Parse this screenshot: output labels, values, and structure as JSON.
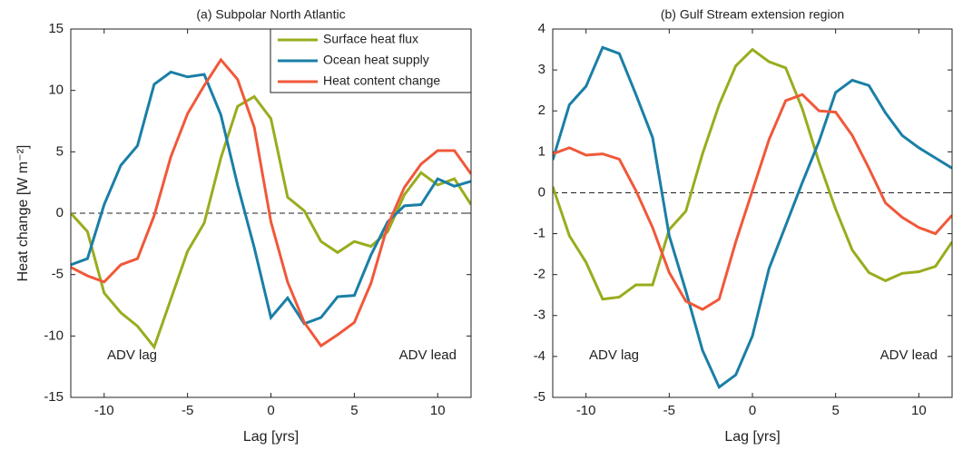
{
  "chart_data": [
    {
      "type": "line",
      "title": "(a) Subpolar North Atlantic",
      "xlabel": "Lag [yrs]",
      "ylabel": "Heat change [W m⁻²]",
      "x": [
        -12,
        -11,
        -10,
        -9,
        -8,
        -7,
        -6,
        -5,
        -4,
        -3,
        -2,
        -1,
        0,
        1,
        2,
        3,
        4,
        5,
        6,
        7,
        8,
        9,
        10,
        11,
        12
      ],
      "series": [
        {
          "name": "Surface heat flux",
          "color": "#9aac1e",
          "values": [
            0,
            -1.5,
            -6.5,
            -8.1,
            -9.2,
            -10.9,
            -7,
            -3.1,
            -0.8,
            4.5,
            8.7,
            9.5,
            7.7,
            1.3,
            0.2,
            -2.3,
            -3.2,
            -2.3,
            -2.7,
            -1.5,
            1.5,
            3.3,
            2.3,
            2.8,
            0.7
          ]
        },
        {
          "name": "Ocean heat supply",
          "color": "#1a7fa6",
          "values": [
            -4.2,
            -3.7,
            0.7,
            3.9,
            5.5,
            10.5,
            11.5,
            11.1,
            11.3,
            8,
            2.3,
            -2.8,
            -8.5,
            -6.9,
            -9,
            -8.5,
            -6.8,
            -6.7,
            -3.4,
            -0.7,
            0.6,
            0.7,
            2.8,
            2.2,
            2.6
          ]
        },
        {
          "name": "Heat content change",
          "color": "#f0583a",
          "values": [
            -4.4,
            -5.1,
            -5.6,
            -4.2,
            -3.7,
            -0.2,
            4.6,
            8.1,
            10.4,
            12.5,
            10.9,
            7,
            -0.7,
            -5.6,
            -8.9,
            -10.8,
            -9.9,
            -8.9,
            -5.7,
            -1,
            2.1,
            4,
            5.1,
            5.1,
            3.2
          ]
        }
      ],
      "xlim": [
        -12,
        12
      ],
      "xticks": [
        -10,
        -5,
        0,
        5,
        10
      ],
      "ylim": [
        -15,
        15
      ],
      "yticks": [
        -15,
        -10,
        -5,
        0,
        5,
        10,
        15
      ],
      "zero_line": true,
      "legend": "upper right",
      "annotations": [
        "ADV lag",
        "ADV lead"
      ]
    },
    {
      "type": "line",
      "title": "(b) Gulf Stream extension region",
      "xlabel": "Lag [yrs]",
      "x": [
        -12,
        -11,
        -10,
        -9,
        -8,
        -7,
        -6,
        -5,
        -4,
        -3,
        -2,
        -1,
        0,
        1,
        2,
        3,
        4,
        5,
        6,
        7,
        8,
        9,
        10,
        11,
        12
      ],
      "series": [
        {
          "color": "#9aac1e",
          "values": [
            0.15,
            -1.05,
            -1.7,
            -2.6,
            -2.55,
            -2.25,
            -2.25,
            -0.9,
            -0.45,
            0.95,
            2.15,
            3.1,
            3.5,
            3.2,
            3.05,
            2.05,
            0.75,
            -0.4,
            -1.4,
            -1.95,
            -2.15,
            -1.97,
            -1.93,
            -1.8,
            -1.2
          ]
        },
        {
          "color": "#1a7fa6",
          "values": [
            0.8,
            2.15,
            2.6,
            3.55,
            3.4,
            2.4,
            1.35,
            -1.05,
            -2.4,
            -3.85,
            -4.75,
            -4.45,
            -3.5,
            -1.85,
            -0.8,
            0.25,
            1.25,
            2.45,
            2.75,
            2.62,
            1.95,
            1.4,
            1.1,
            0.85,
            0.6
          ]
        },
        {
          "color": "#f0583a",
          "values": [
            0.95,
            1.1,
            0.92,
            0.95,
            0.82,
            0.05,
            -0.85,
            -1.95,
            -2.65,
            -2.85,
            -2.6,
            -1.2,
            0.05,
            1.3,
            2.25,
            2.4,
            2,
            1.97,
            1.4,
            0.6,
            -0.25,
            -0.6,
            -0.85,
            -1,
            -0.55
          ]
        }
      ],
      "xlim": [
        -12,
        12
      ],
      "xticks": [
        -10,
        -5,
        0,
        5,
        10
      ],
      "ylim": [
        -5,
        4
      ],
      "yticks": [
        -5,
        -4,
        -3,
        -2,
        -1,
        0,
        1,
        2,
        3,
        4
      ],
      "zero_line": true,
      "annotations": [
        "ADV lag",
        "ADV lead"
      ]
    }
  ]
}
